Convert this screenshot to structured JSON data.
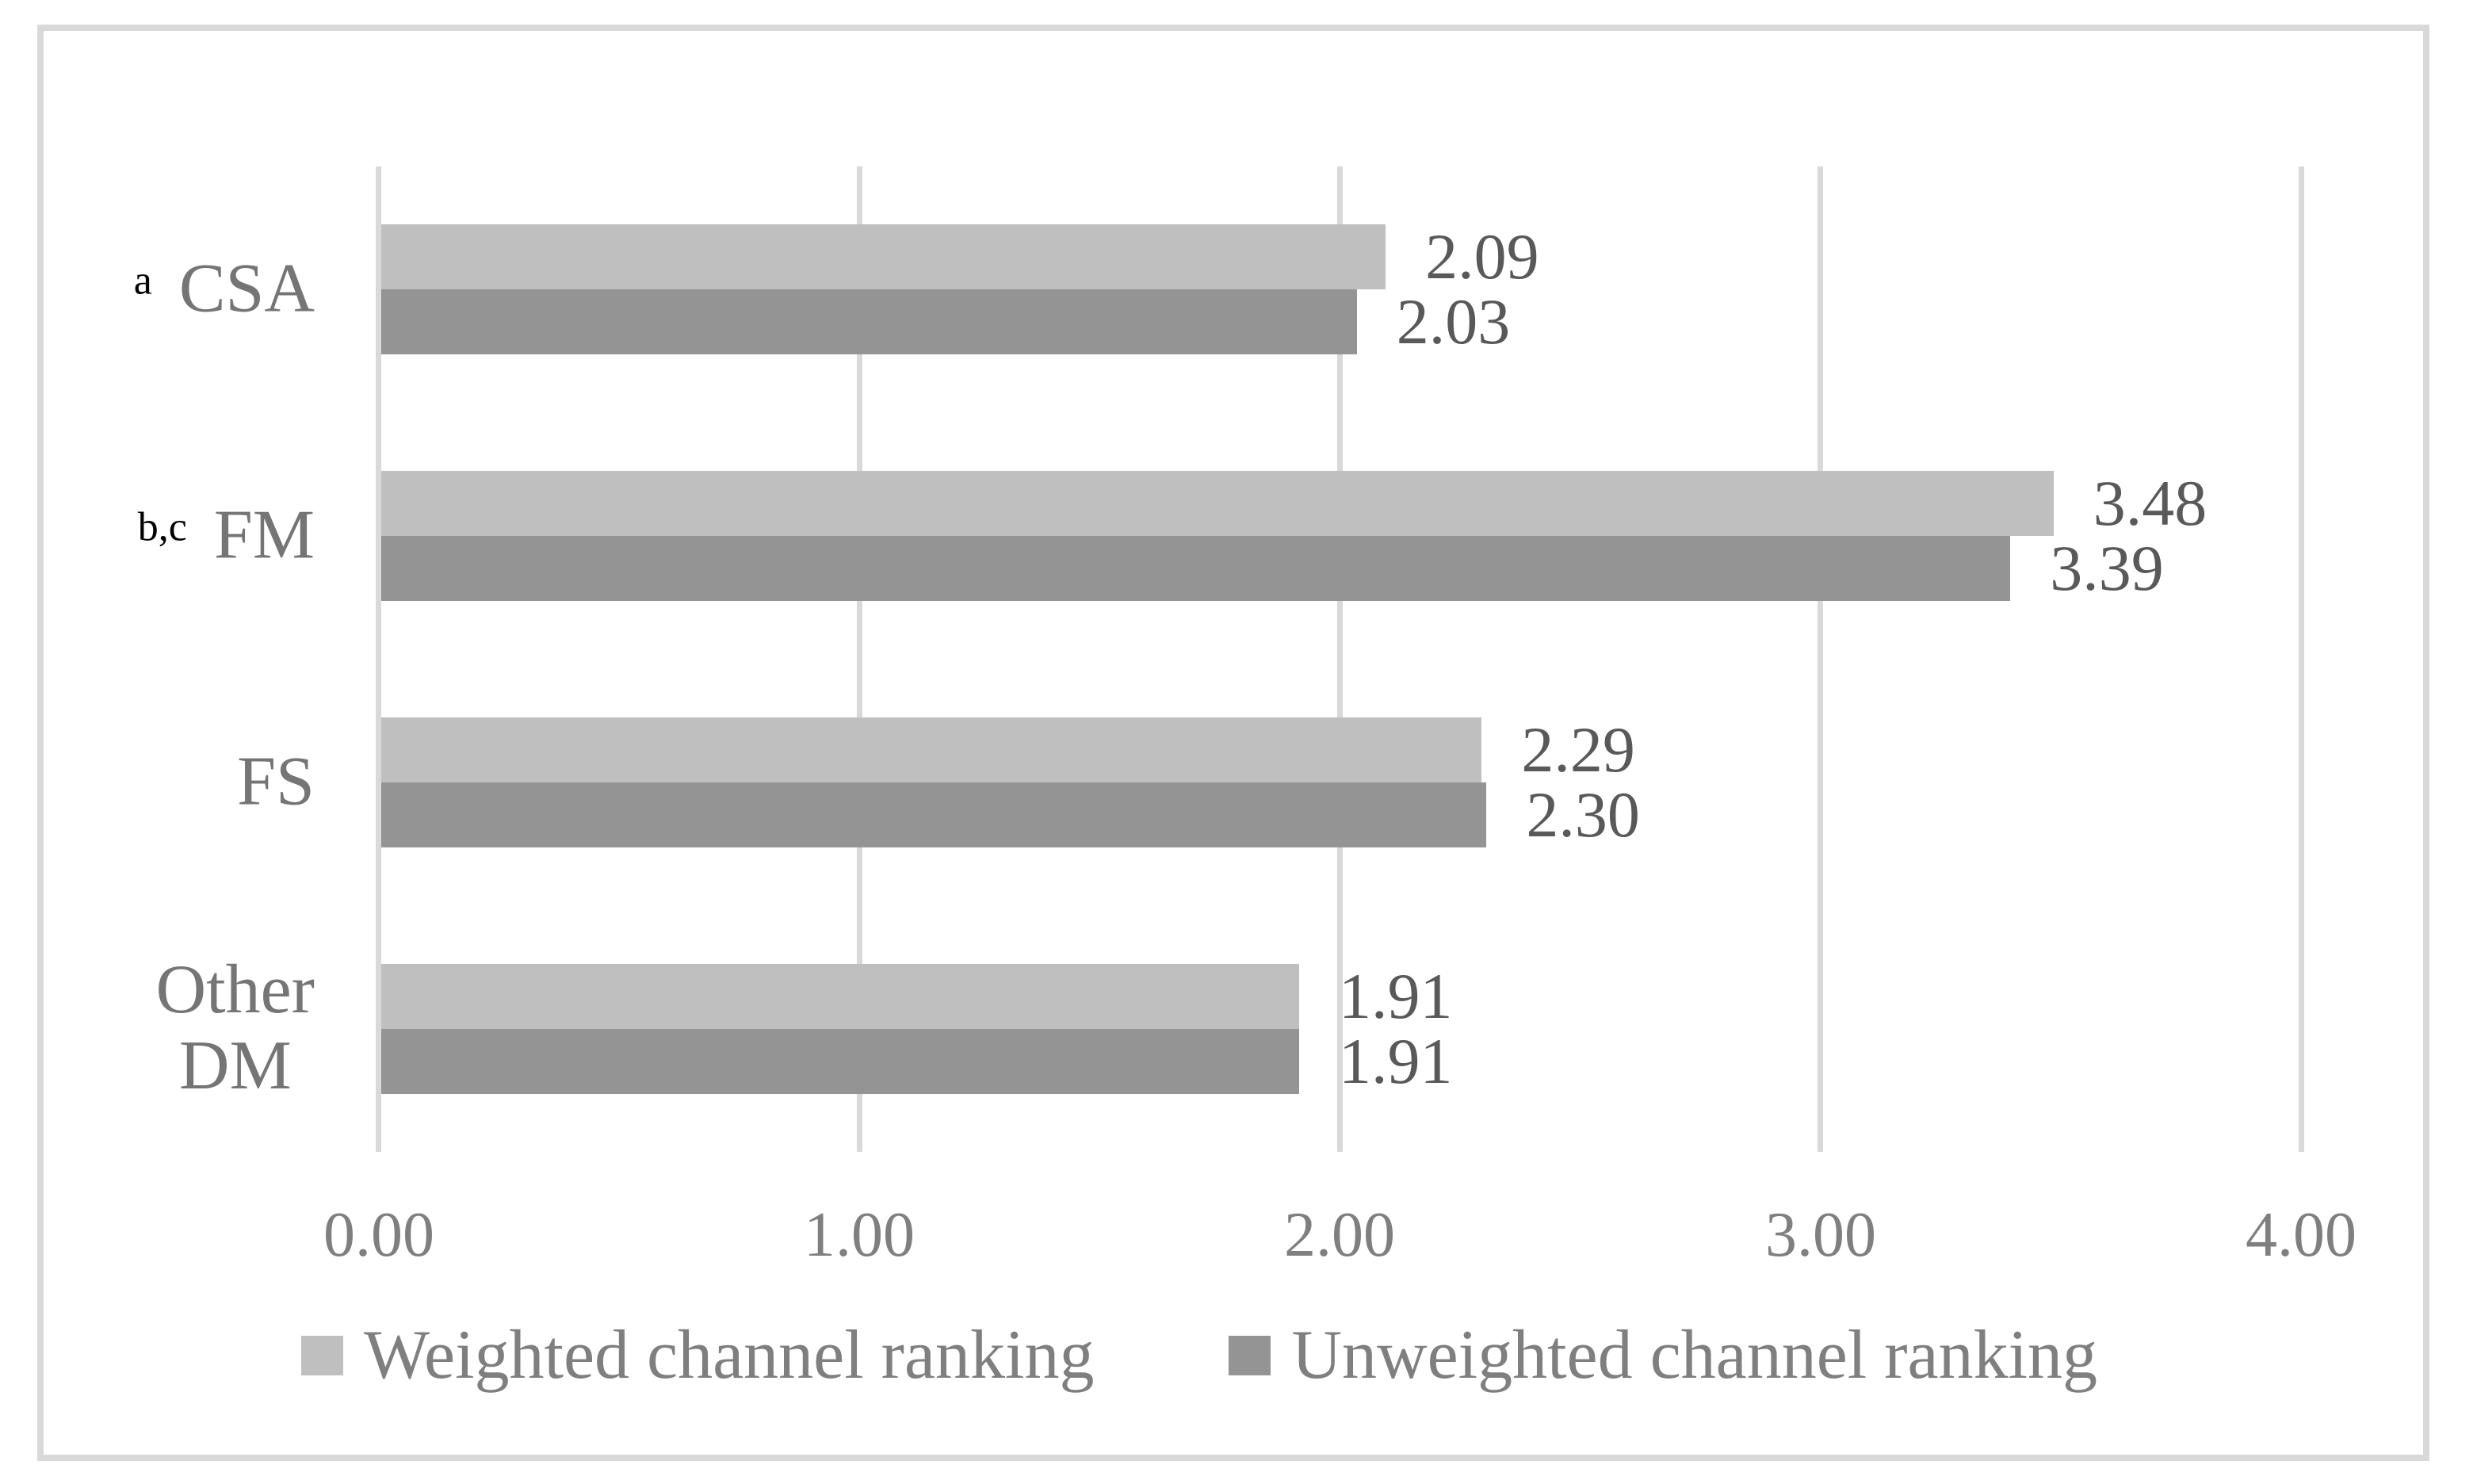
{
  "styles": {
    "background": "#FFFFFF",
    "border_color": "#D9D9D9",
    "gridline_color": "#D9D9D9",
    "data_label_color": "#595959",
    "axis_text_color": "#7F7F7F",
    "category_text_color": "#757575",
    "superscript_color": "#000000"
  },
  "chart_data": {
    "type": "bar",
    "orientation": "horizontal",
    "title": "",
    "xlabel": "",
    "ylabel": "",
    "categories": [
      "CSA",
      "FM",
      "FS",
      "Other\nDM"
    ],
    "category_superscripts": [
      "a",
      "b,c",
      "",
      ""
    ],
    "series": [
      {
        "name": "Weighted channel ranking",
        "color": "#BFBFBF",
        "values": [
          2.09,
          3.48,
          2.29,
          1.91
        ],
        "labels": [
          "2.09",
          "3.48",
          "2.29",
          "1.91"
        ]
      },
      {
        "name": "Unweighted channel ranking",
        "color": "#949494",
        "values": [
          2.03,
          3.39,
          2.3,
          1.91
        ],
        "labels": [
          "2.03",
          "3.39",
          "2.30",
          "1.91"
        ]
      }
    ],
    "x_ticks": [
      "0.00",
      "1.00",
      "2.00",
      "3.00",
      "4.00"
    ],
    "x_tick_values": [
      0,
      1,
      2,
      3,
      4
    ],
    "xlim": [
      0,
      4
    ],
    "grid": "vertical",
    "legend_position": "bottom"
  }
}
